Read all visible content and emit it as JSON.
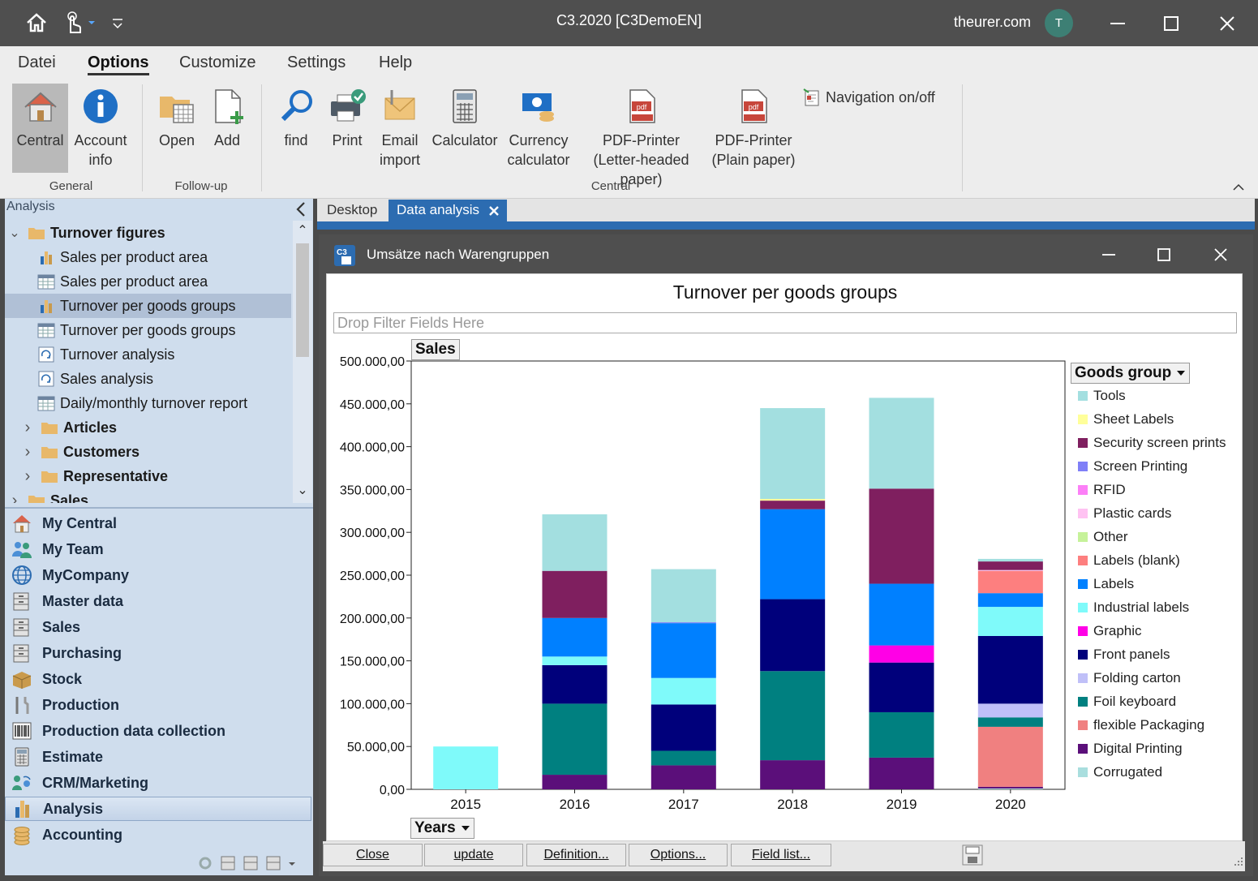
{
  "window": {
    "title": "C3.2020 [C3DemoEN]",
    "user": "theurer.com",
    "avatar": "T"
  },
  "menu": {
    "items": [
      "Datei",
      "Options",
      "Customize",
      "Settings",
      "Help"
    ],
    "active": "Options"
  },
  "ribbon": {
    "buttons": {
      "central": "Central",
      "account_info": "Account info",
      "open": "Open",
      "add": "Add",
      "find": "find",
      "print": "Print",
      "email_import": "Email import",
      "calculator": "Calculator",
      "currency_calculator": "Currency calculator",
      "pdf_letter": "PDF-Printer (Letter-headed paper)",
      "pdf_plain": "PDF-Printer (Plain paper)",
      "navigation": "Navigation on/off"
    },
    "groups": {
      "general": "General",
      "followup": "Follow-up",
      "central": "Central"
    }
  },
  "left_panel": {
    "title": "Analysis",
    "tree": [
      {
        "label": "Turnover figures",
        "type": "folder",
        "expanded": true,
        "level": 0
      },
      {
        "label": "Sales per product area",
        "type": "chart",
        "level": 1
      },
      {
        "label": "Sales per product area",
        "type": "table",
        "level": 1
      },
      {
        "label": "Turnover per goods groups",
        "type": "chart",
        "level": 1,
        "selected": true
      },
      {
        "label": "Turnover per goods groups",
        "type": "table",
        "level": 1
      },
      {
        "label": "Turnover analysis",
        "type": "report",
        "level": 1
      },
      {
        "label": "Sales analysis",
        "type": "report",
        "level": 1
      },
      {
        "label": "Daily/monthly turnover report",
        "type": "table",
        "level": 1
      },
      {
        "label": "Articles",
        "type": "folder",
        "level": 1
      },
      {
        "label": "Customers",
        "type": "folder",
        "level": 1
      },
      {
        "label": "Representative",
        "type": "folder",
        "level": 1
      },
      {
        "label": "Sales",
        "type": "folder",
        "level": 0
      }
    ],
    "nav": [
      {
        "label": "My Central",
        "icon": "home-icon"
      },
      {
        "label": "My Team",
        "icon": "team-icon"
      },
      {
        "label": "MyCompany",
        "icon": "globe-icon"
      },
      {
        "label": "Master data",
        "icon": "cabinet-icon"
      },
      {
        "label": "Sales",
        "icon": "cabinet-icon"
      },
      {
        "label": "Purchasing",
        "icon": "cabinet-icon"
      },
      {
        "label": "Stock",
        "icon": "box-icon"
      },
      {
        "label": "Production",
        "icon": "tools-icon"
      },
      {
        "label": "Production data collection",
        "icon": "barcode-icon"
      },
      {
        "label": "Estimate",
        "icon": "calculator-icon"
      },
      {
        "label": "CRM/Marketing",
        "icon": "crm-icon"
      },
      {
        "label": "Analysis",
        "icon": "bar-chart-icon",
        "selected": true
      },
      {
        "label": "Accounting",
        "icon": "coins-icon"
      }
    ]
  },
  "tabs": [
    {
      "label": "Desktop",
      "active": false
    },
    {
      "label": "Data analysis",
      "active": true
    }
  ],
  "inner_window": {
    "title": "Umsätze nach Warengruppen"
  },
  "pivot": {
    "drop_filter": "Drop Filter Fields Here",
    "data_field": "Sales",
    "row_field": "Years",
    "series_field": "Goods group"
  },
  "chart_data": {
    "type": "bar",
    "stacked": true,
    "title": "Turnover per goods groups",
    "ylabel": "Sales",
    "xlabel": "Years",
    "legend_title": "Goods group",
    "legend_position": "right",
    "y_ticks": [
      "0,00",
      "50.000,00",
      "100.000,00",
      "150.000,00",
      "200.000,00",
      "250.000,00",
      "300.000,00",
      "350.000,00",
      "400.000,00",
      "450.000,00",
      "500.000,00"
    ],
    "ylim": [
      0,
      500000
    ],
    "categories": [
      "2015",
      "2016",
      "2017",
      "2018",
      "2019",
      "2020"
    ],
    "series": [
      {
        "name": "Corrugated",
        "color": "#a9dede",
        "values": [
          0,
          0,
          0,
          0,
          0,
          1000
        ]
      },
      {
        "name": "Digital Printing",
        "color": "#5b0f7a",
        "values": [
          0,
          17000,
          28000,
          34000,
          37000,
          2000
        ]
      },
      {
        "name": "flexible Packaging",
        "color": "#f08080",
        "values": [
          0,
          0,
          0,
          0,
          0,
          70000
        ]
      },
      {
        "name": "Foil keyboard",
        "color": "#008080",
        "values": [
          0,
          83000,
          17000,
          104000,
          53000,
          11000
        ]
      },
      {
        "name": "Folding carton",
        "color": "#c0c0f8",
        "values": [
          0,
          0,
          0,
          0,
          0,
          16000
        ]
      },
      {
        "name": "Front panels",
        "color": "#00007b",
        "values": [
          0,
          45000,
          54000,
          84000,
          58000,
          79000
        ]
      },
      {
        "name": "Graphic",
        "color": "#ff00e6",
        "values": [
          0,
          0,
          0,
          0,
          20000,
          0
        ]
      },
      {
        "name": "Industrial labels",
        "color": "#7ffafa",
        "values": [
          50000,
          10000,
          31000,
          0,
          0,
          34000
        ]
      },
      {
        "name": "Labels",
        "color": "#0080ff",
        "values": [
          0,
          45000,
          64000,
          105000,
          72000,
          16000
        ]
      },
      {
        "name": "Labels (blank)",
        "color": "#fd7f7f",
        "values": [
          0,
          0,
          0,
          0,
          0,
          26000
        ]
      },
      {
        "name": "Other",
        "color": "#c6f29a",
        "values": [
          0,
          0,
          0,
          0,
          0,
          0
        ]
      },
      {
        "name": "Plastic cards",
        "color": "#ffc2f2",
        "values": [
          0,
          0,
          0,
          0,
          0,
          1000
        ]
      },
      {
        "name": "RFID",
        "color": "#fc7ff7",
        "values": [
          0,
          0,
          0,
          0,
          0,
          0
        ]
      },
      {
        "name": "Screen Printing",
        "color": "#7f7ff7",
        "values": [
          0,
          0,
          1000,
          0,
          0,
          0
        ]
      },
      {
        "name": "Security screen prints",
        "color": "#7f1f5f",
        "values": [
          0,
          55000,
          0,
          10000,
          111000,
          10000
        ]
      },
      {
        "name": "Sheet Labels",
        "color": "#ffff9a",
        "values": [
          0,
          0,
          0,
          2000,
          0,
          0
        ]
      },
      {
        "name": "Tools",
        "color": "#a3dfe0",
        "values": [
          0,
          66000,
          62000,
          106000,
          106000,
          3000
        ]
      }
    ]
  },
  "legend_order": [
    "Tools",
    "Sheet Labels",
    "Security screen prints",
    "Screen Printing",
    "RFID",
    "Plastic cards",
    "Other",
    "Labels (blank)",
    "Labels",
    "Industrial labels",
    "Graphic",
    "Front panels",
    "Folding carton",
    "Foil keyboard",
    "flexible Packaging",
    "Digital Printing",
    "Corrugated"
  ],
  "bottom_buttons": [
    "Close",
    "update",
    "Definition...",
    "Options...",
    "Field list..."
  ]
}
